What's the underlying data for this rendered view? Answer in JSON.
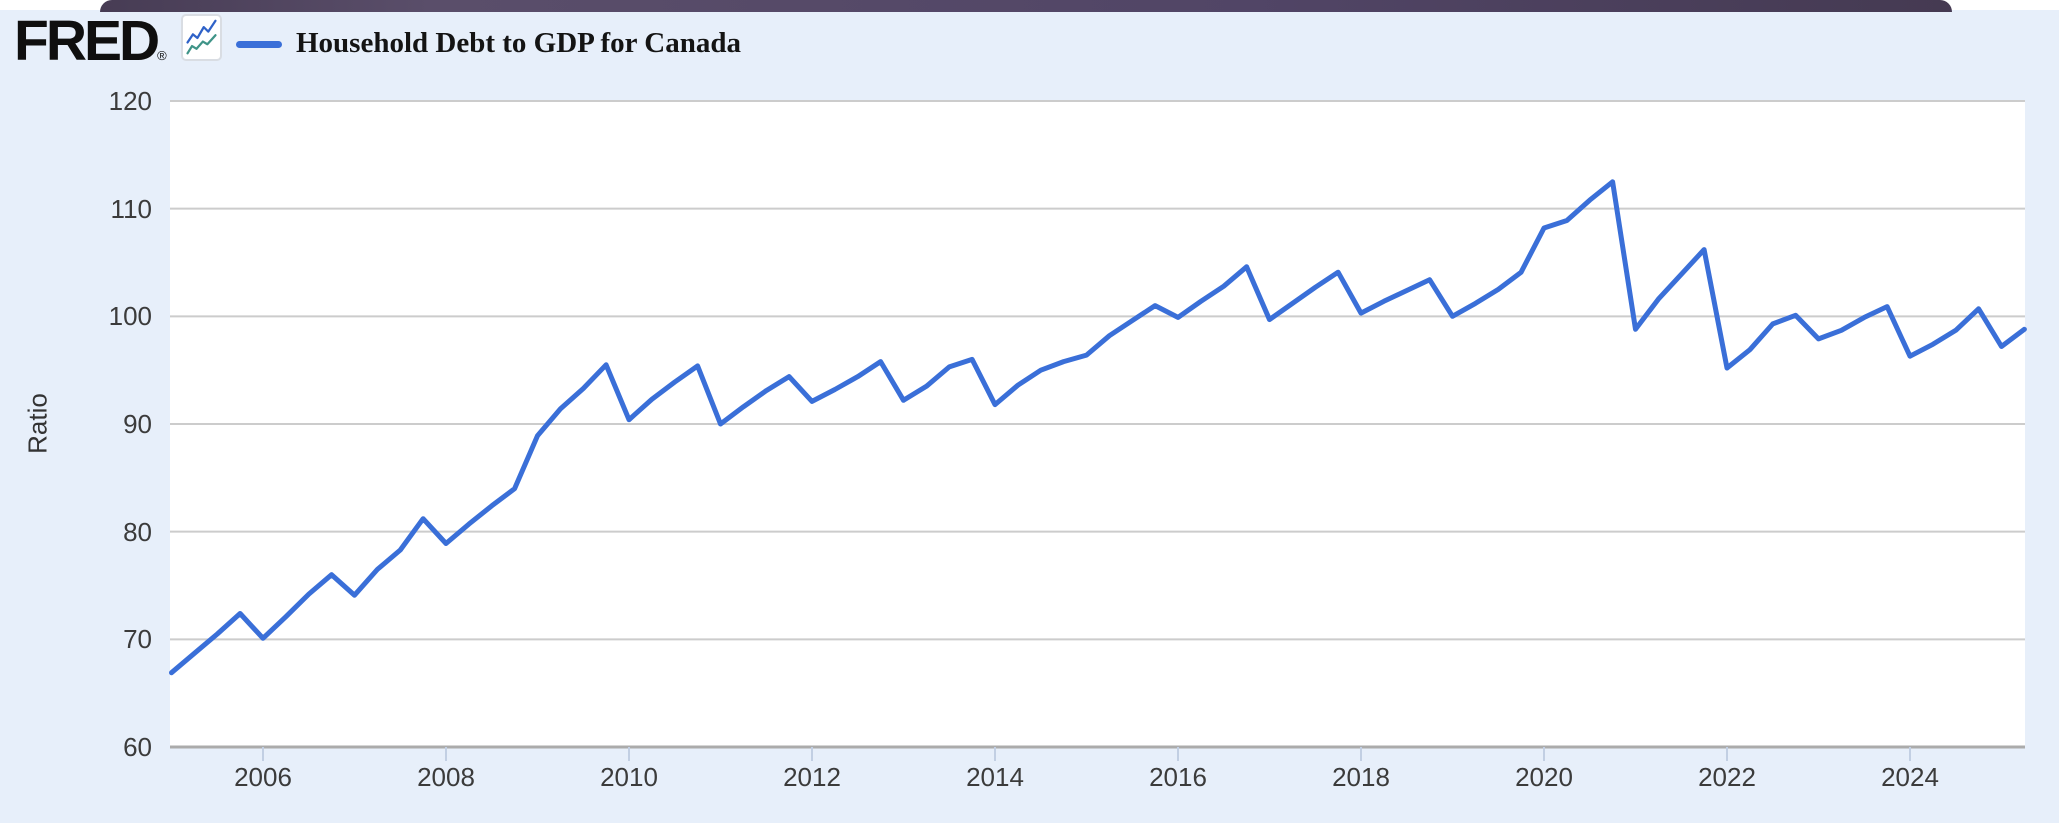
{
  "page": {
    "top_bar_color": "#514566",
    "background_color": "#e7effa",
    "plot_background_color": "#ffffff",
    "gridline_color": "#cccccc",
    "axis_line_color": "#ababab",
    "tick_mark_color": "#c2cfe3",
    "axis_text_color": "#3b3b3b"
  },
  "header": {
    "logo_text": "FRED",
    "registered_mark": "®",
    "logo_icon": "fred-line-chart-icon",
    "legend": {
      "label": "Household Debt to GDP for Canada",
      "line_color": "#3a6fd8"
    }
  },
  "chart_data": {
    "type": "line",
    "title": "Household Debt to GDP for Canada",
    "xlabel": "",
    "ylabel": "Ratio",
    "ylim": [
      60,
      120
    ],
    "xlim_years": [
      2005.0,
      2025.26
    ],
    "y_ticks": [
      60,
      70,
      80,
      90,
      100,
      110,
      120
    ],
    "x_tick_years": [
      2006,
      2008,
      2010,
      2012,
      2014,
      2016,
      2018,
      2020,
      2022,
      2024
    ],
    "grid": "horizontal-only",
    "legend_position": "top-left-above-chart",
    "series": [
      {
        "name": "Household Debt to GDP for Canada",
        "color": "#3a6fd8",
        "frequency": "quarterly",
        "start": "2005-Q1",
        "end": "2025-Q2",
        "x_start_year": 2005.0,
        "x_step_years": 0.25,
        "values": [
          66.9,
          68.7,
          70.5,
          72.4,
          70.1,
          72.1,
          74.2,
          76.0,
          74.1,
          76.5,
          78.3,
          81.2,
          78.9,
          80.7,
          82.4,
          84.0,
          88.9,
          91.4,
          93.3,
          95.5,
          90.4,
          92.3,
          93.9,
          95.4,
          90.0,
          91.6,
          93.1,
          94.4,
          92.1,
          93.2,
          94.4,
          95.8,
          92.2,
          93.5,
          95.3,
          96.0,
          91.8,
          93.6,
          95.0,
          95.8,
          96.4,
          98.2,
          99.6,
          101.0,
          99.9,
          101.4,
          102.8,
          104.6,
          99.7,
          101.2,
          102.7,
          104.1,
          100.3,
          101.4,
          102.4,
          103.4,
          100.0,
          101.2,
          102.5,
          104.1,
          108.2,
          108.9,
          110.8,
          112.5,
          98.8,
          101.6,
          103.9,
          106.2,
          95.2,
          96.9,
          99.3,
          100.1,
          97.9,
          98.7,
          99.9,
          100.9,
          96.3,
          97.4,
          98.7,
          100.7,
          97.2,
          98.8
        ]
      }
    ]
  }
}
